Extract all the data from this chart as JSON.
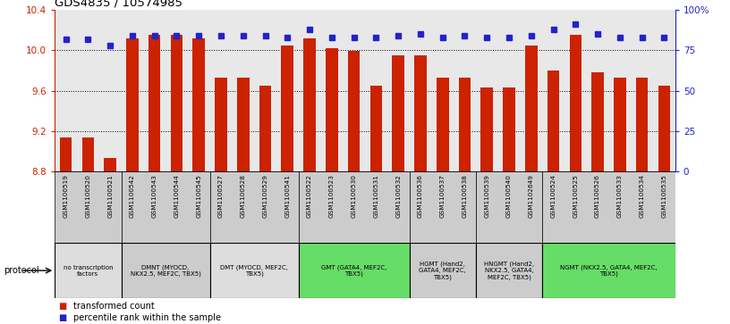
{
  "title": "GDS4835 / 10574985",
  "samples": [
    "GSM1100519",
    "GSM1100520",
    "GSM1100521",
    "GSM1100542",
    "GSM1100543",
    "GSM1100544",
    "GSM1100545",
    "GSM1100527",
    "GSM1100528",
    "GSM1100529",
    "GSM1100541",
    "GSM1100522",
    "GSM1100523",
    "GSM1100530",
    "GSM1100531",
    "GSM1100532",
    "GSM1100536",
    "GSM1100537",
    "GSM1100538",
    "GSM1100539",
    "GSM1100540",
    "GSM1102649",
    "GSM1100524",
    "GSM1100525",
    "GSM1100526",
    "GSM1100533",
    "GSM1100534",
    "GSM1100535"
  ],
  "bar_values": [
    9.14,
    9.14,
    8.94,
    10.12,
    10.15,
    10.15,
    10.12,
    9.73,
    9.73,
    9.65,
    10.05,
    10.12,
    10.02,
    9.99,
    9.65,
    9.95,
    9.95,
    9.73,
    9.73,
    9.63,
    9.63,
    10.05,
    9.8,
    10.15,
    9.78,
    9.73,
    9.73,
    9.65
  ],
  "percentile_values": [
    82,
    82,
    78,
    84,
    84,
    84,
    84,
    84,
    84,
    84,
    83,
    88,
    83,
    83,
    83,
    84,
    85,
    83,
    84,
    83,
    83,
    84,
    88,
    91,
    85,
    83,
    83,
    83
  ],
  "ylim_left": [
    8.8,
    10.4
  ],
  "ylim_right": [
    0,
    100
  ],
  "yticks_left": [
    8.8,
    9.2,
    9.6,
    10.0,
    10.4
  ],
  "yticks_right": [
    0,
    25,
    50,
    75,
    100
  ],
  "ytick_labels_right": [
    "0",
    "25",
    "50",
    "75",
    "100%"
  ],
  "hline_values": [
    10.0,
    9.6,
    9.2
  ],
  "bar_color": "#cc2200",
  "marker_color": "#2222cc",
  "bar_bottom": 8.8,
  "protocol_groups": [
    {
      "label": "no transcription\nfactors",
      "start": 0,
      "end": 3,
      "color": "#dddddd",
      "bar_color": "#cccccc"
    },
    {
      "label": "DMNT (MYOCD,\nNKX2.5, MEF2C, TBX5)",
      "start": 3,
      "end": 7,
      "color": "#cccccc",
      "bar_color": "#cccccc"
    },
    {
      "label": "DMT (MYOCD, MEF2C,\nTBX5)",
      "start": 7,
      "end": 11,
      "color": "#dddddd",
      "bar_color": "#cccccc"
    },
    {
      "label": "GMT (GATA4, MEF2C,\nTBX5)",
      "start": 11,
      "end": 16,
      "color": "#66dd66",
      "bar_color": "#cccccc"
    },
    {
      "label": "HGMT (Hand2,\nGATA4, MEF2C,\nTBX5)",
      "start": 16,
      "end": 19,
      "color": "#cccccc",
      "bar_color": "#cccccc"
    },
    {
      "label": "HNGMT (Hand2,\nNKX2.5, GATA4,\nMEF2C, TBX5)",
      "start": 19,
      "end": 22,
      "color": "#cccccc",
      "bar_color": "#cccccc"
    },
    {
      "label": "NGMT (NKX2.5, GATA4, MEF2C,\nTBX5)",
      "start": 22,
      "end": 28,
      "color": "#66dd66",
      "bar_color": "#cccccc"
    }
  ],
  "legend_items": [
    {
      "label": "transformed count",
      "color": "#cc2200"
    },
    {
      "label": "percentile rank within the sample",
      "color": "#2222cc"
    }
  ]
}
